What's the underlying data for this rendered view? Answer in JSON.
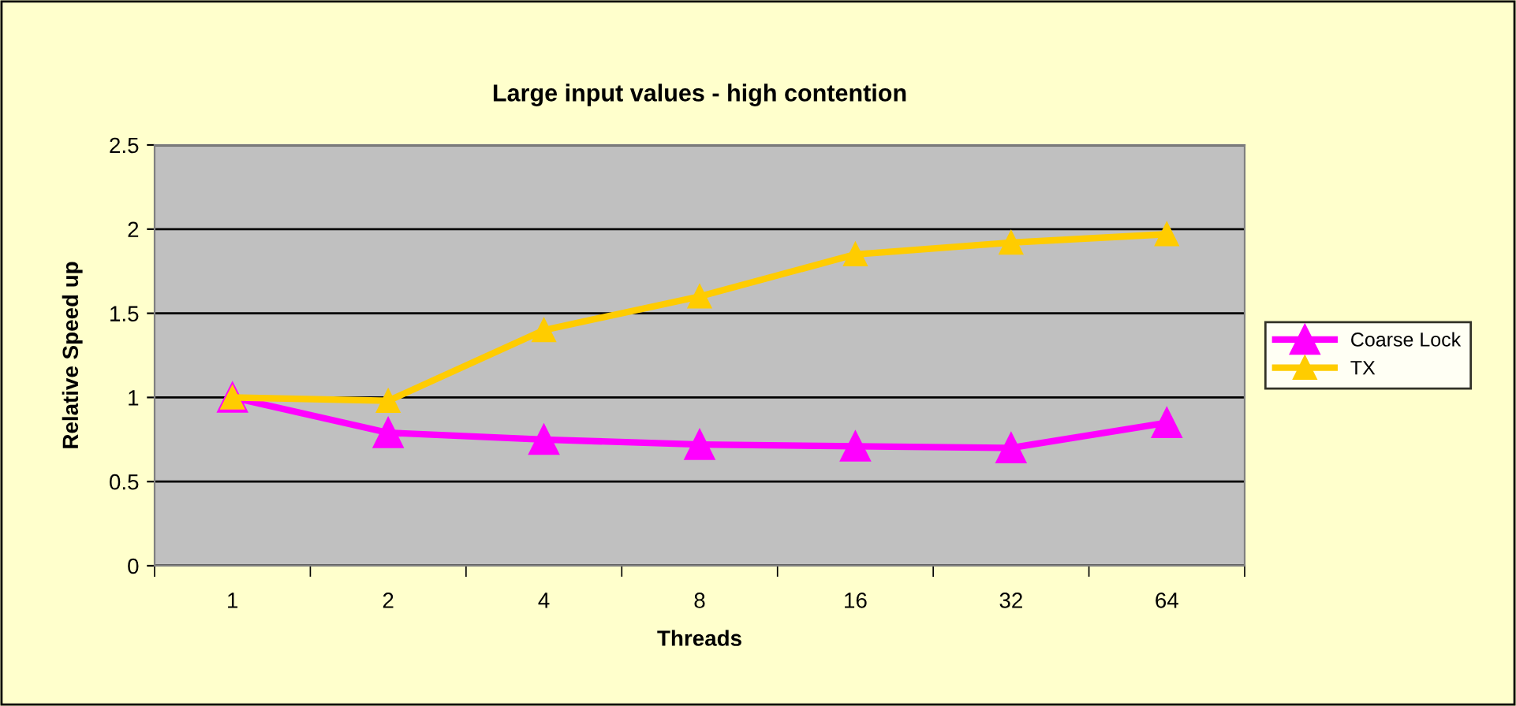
{
  "chart_data": {
    "type": "line",
    "title": "Large input values - high contention",
    "xlabel": "Threads",
    "ylabel": "Relative Speed up",
    "categories": [
      "1",
      "2",
      "4",
      "8",
      "16",
      "32",
      "64"
    ],
    "series": [
      {
        "name": "Coarse Lock",
        "color": "#ff00ff",
        "values": [
          1,
          0.79,
          0.75,
          0.72,
          0.71,
          0.7,
          0.85
        ]
      },
      {
        "name": "TX",
        "color": "#ffcc00",
        "values": [
          1,
          0.98,
          1.4,
          1.6,
          1.85,
          1.92,
          1.97
        ]
      }
    ],
    "ylim": [
      0,
      2.5
    ],
    "yticks": [
      0,
      0.5,
      1,
      1.5,
      2,
      2.5
    ],
    "grid": "y",
    "legend": "right",
    "marker": "triangle",
    "line_style": "solid"
  }
}
